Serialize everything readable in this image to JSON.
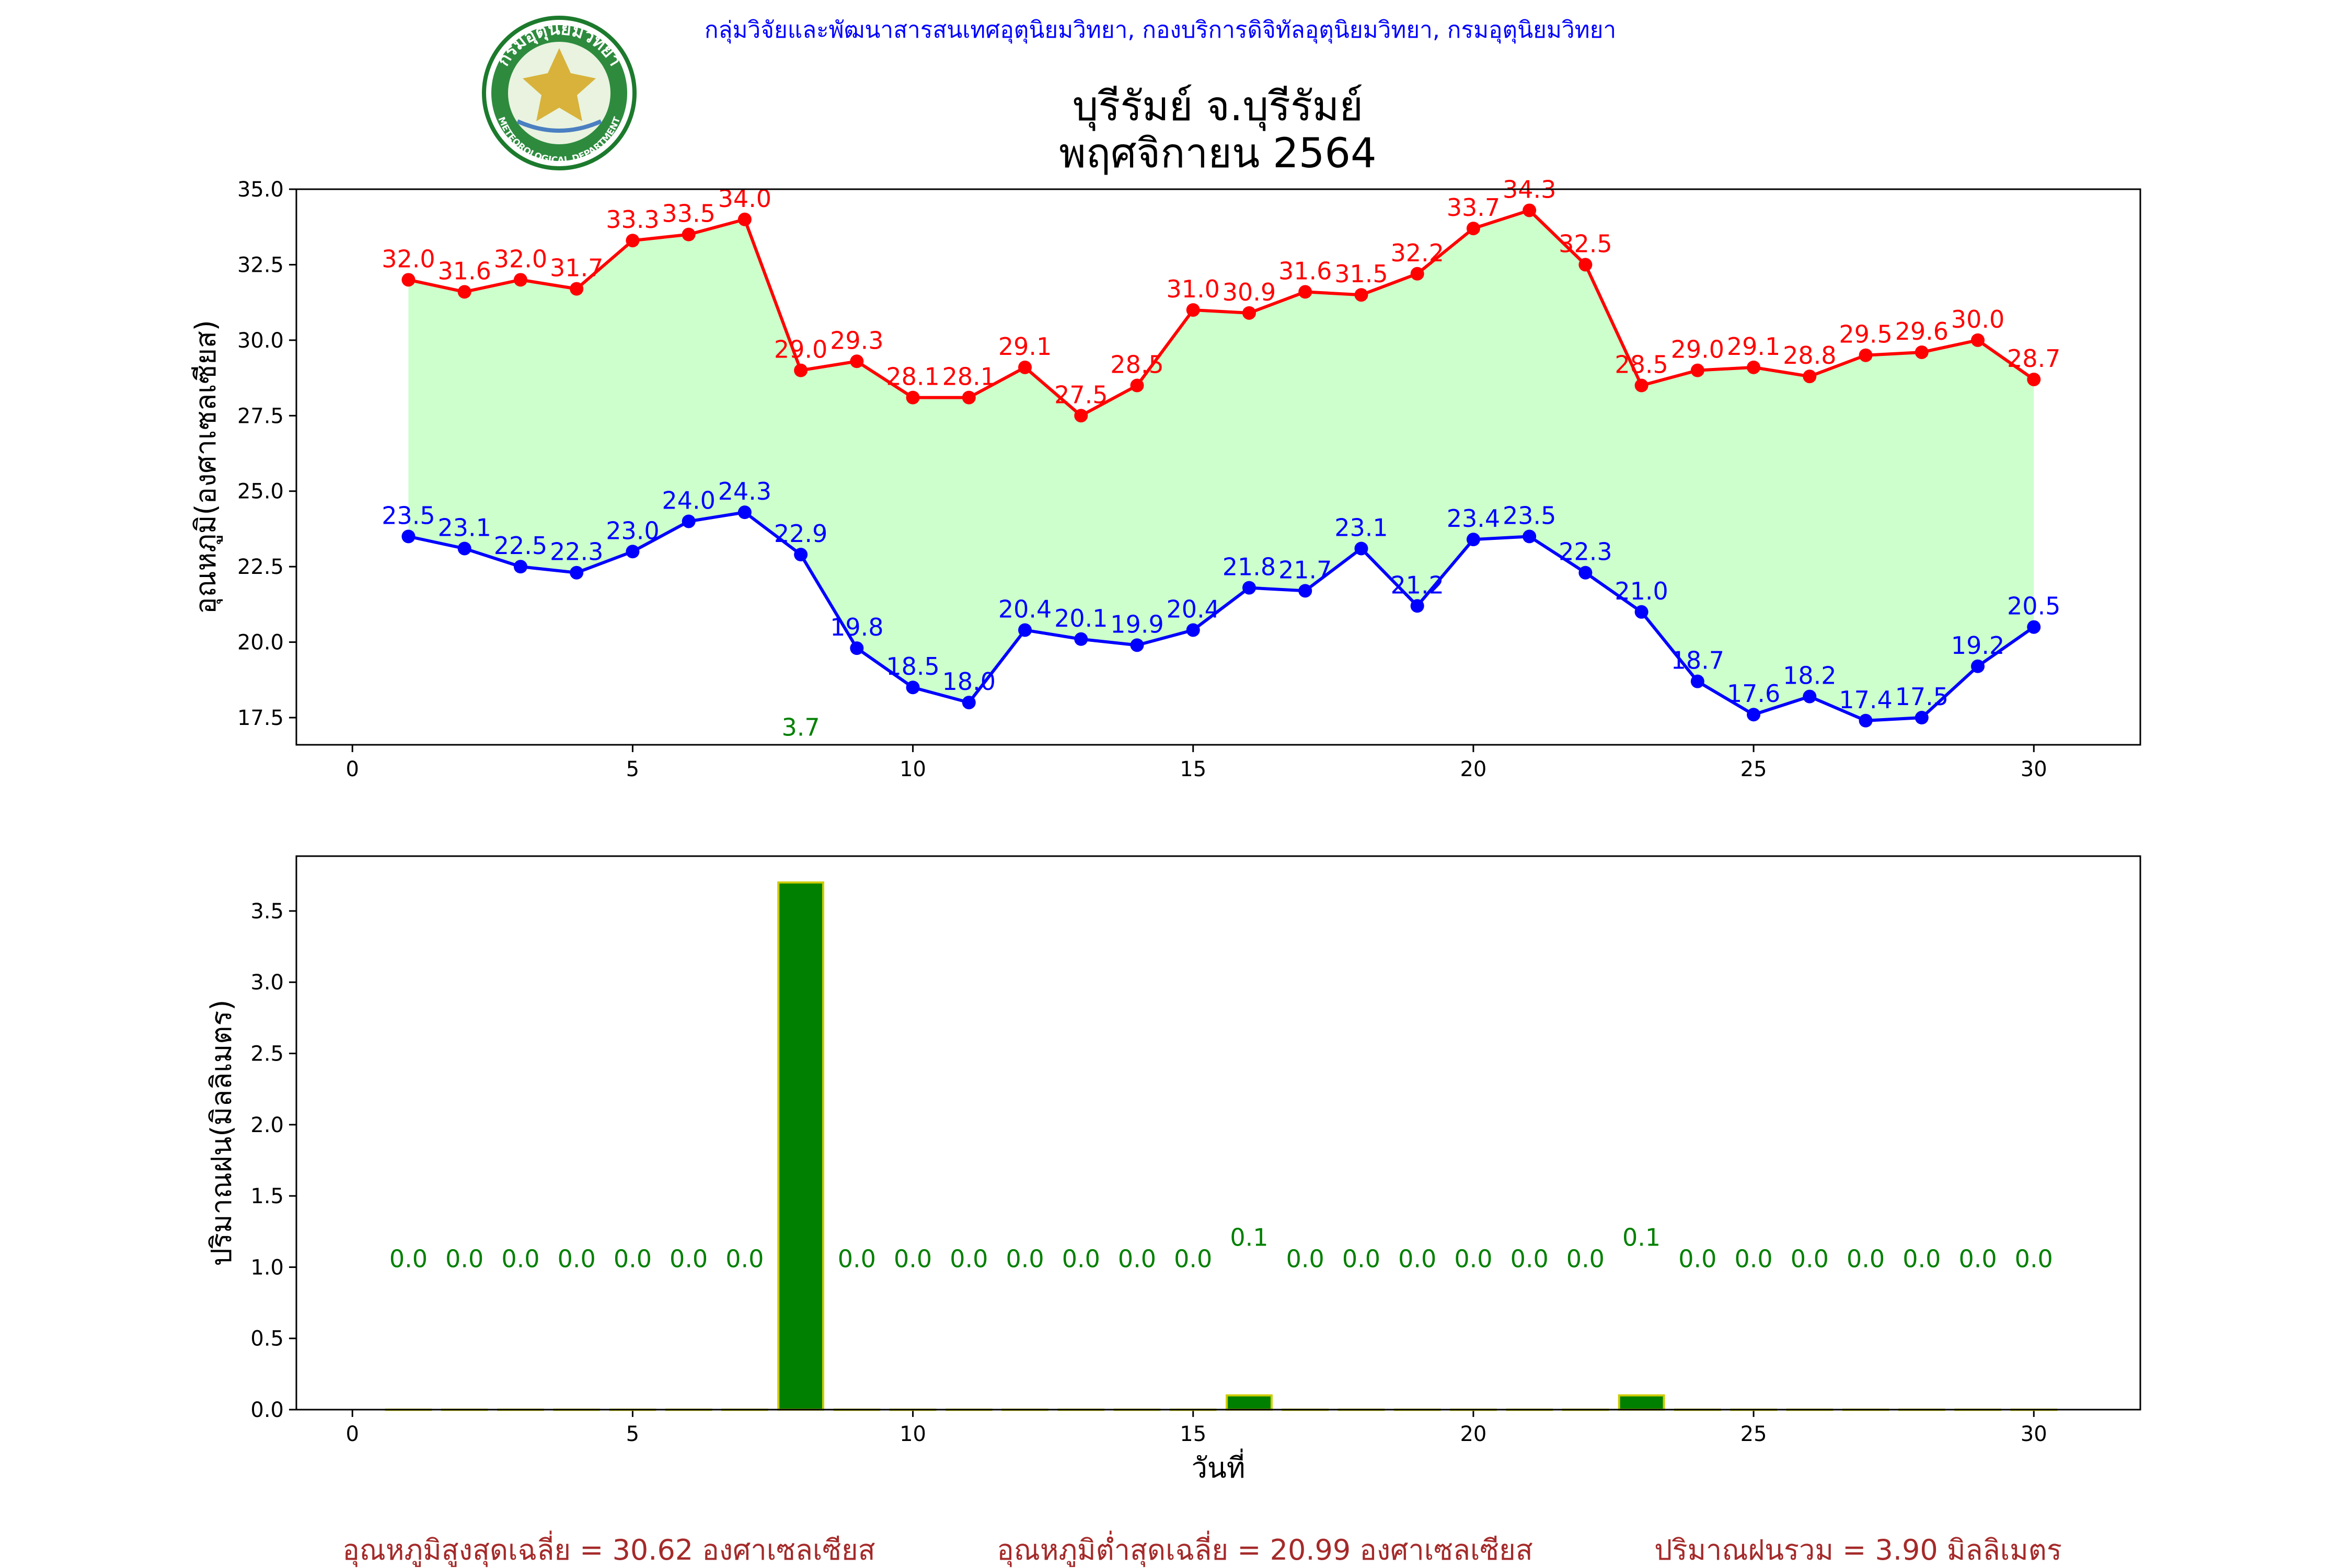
{
  "header": {
    "agency_line": "กลุ่มวิจัยและพัฒนาสารสนเทศอุตุนิยมวิทยา, กองบริการดิจิทัลอุตุนิยมวิทยา, กรมอุตุนิยมวิทยา",
    "logo_text_top": "กรมอุตุนิยมวิทยา",
    "logo_text_bottom": "METEOROLOGICAL DEPARTMENT",
    "title_line1": "บุรีรัมย์ จ.บุรีรัมย์",
    "title_line2": "พฤศจิกายน 2564"
  },
  "colors": {
    "max_line": "#ff0000",
    "min_line": "#0000ff",
    "fill": "#ccffcc",
    "rain_bar": "#008000",
    "rain_edge": "#cccc00",
    "rain_label": "#008000",
    "footer_text": "#a52a2a",
    "agency_text": "#0000ff"
  },
  "chart_data": [
    {
      "type": "line",
      "ylabel": "อุณหภูมิ(องศาเซลเซียส)",
      "xlim": [
        -1,
        31.9
      ],
      "ylim": [
        16.6,
        35.0
      ],
      "xticks": [
        0,
        5,
        10,
        15,
        20,
        25,
        30
      ],
      "yticks": [
        17.5,
        20.0,
        22.5,
        25.0,
        27.5,
        30.0,
        32.5,
        35.0
      ],
      "x": [
        1,
        2,
        3,
        4,
        5,
        6,
        7,
        8,
        9,
        10,
        11,
        12,
        13,
        14,
        15,
        16,
        17,
        18,
        19,
        20,
        21,
        22,
        23,
        24,
        25,
        26,
        27,
        28,
        29,
        30
      ],
      "series": [
        {
          "key": "max",
          "values": [
            32.0,
            31.6,
            32.0,
            31.7,
            33.3,
            33.5,
            34.0,
            29.0,
            29.3,
            28.1,
            28.1,
            29.1,
            27.5,
            28.5,
            31.0,
            30.9,
            31.6,
            31.5,
            32.2,
            33.7,
            34.3,
            32.5,
            28.5,
            29.0,
            29.1,
            28.8,
            29.5,
            29.6,
            30.0,
            28.7
          ]
        },
        {
          "key": "min",
          "values": [
            23.5,
            23.1,
            22.5,
            22.3,
            23.0,
            24.0,
            24.3,
            22.9,
            19.8,
            18.5,
            18.0,
            20.4,
            20.1,
            19.9,
            20.4,
            21.8,
            21.7,
            23.1,
            21.2,
            23.4,
            23.5,
            22.3,
            21.0,
            18.7,
            17.6,
            18.2,
            17.4,
            17.5,
            19.2,
            20.5
          ]
        }
      ],
      "annotation": {
        "text": "3.7",
        "x": 8,
        "y": 16.9
      }
    },
    {
      "type": "bar",
      "xlabel": "วันที่",
      "ylabel": "ปริมาณฝน(มิลลิเมตร)",
      "xlim": [
        -1,
        31.9
      ],
      "ylim": [
        0.0,
        3.885
      ],
      "xticks": [
        0,
        5,
        10,
        15,
        20,
        25,
        30
      ],
      "yticks": [
        0.0,
        0.5,
        1.0,
        1.5,
        2.0,
        2.5,
        3.0,
        3.5
      ],
      "x": [
        1,
        2,
        3,
        4,
        5,
        6,
        7,
        8,
        9,
        10,
        11,
        12,
        13,
        14,
        15,
        16,
        17,
        18,
        19,
        20,
        21,
        22,
        23,
        24,
        25,
        26,
        27,
        28,
        29,
        30
      ],
      "values": [
        0.0,
        0.0,
        0.0,
        0.0,
        0.0,
        0.0,
        0.0,
        3.7,
        0.0,
        0.0,
        0.0,
        0.0,
        0.0,
        0.0,
        0.0,
        0.1,
        0.0,
        0.0,
        0.0,
        0.0,
        0.0,
        0.0,
        0.1,
        0.0,
        0.0,
        0.0,
        0.0,
        0.0,
        0.0,
        0.0
      ],
      "value_labels": [
        "0.0",
        "0.0",
        "0.0",
        "0.0",
        "0.0",
        "0.0",
        "0.0",
        "",
        "0.0",
        "0.0",
        "0.0",
        "0.0",
        "0.0",
        "0.0",
        "0.0",
        "0.1",
        "0.0",
        "0.0",
        "0.0",
        "0.0",
        "0.0",
        "0.0",
        "0.1",
        "0.0",
        "0.0",
        "0.0",
        "0.0",
        "0.0",
        "0.0",
        "0.0"
      ],
      "label_y": 1.0,
      "label_y_raised": 1.15
    }
  ],
  "footer": {
    "avg_max": "อุณหภูมิสูงสุดเฉลี่ย = 30.62 องศาเซลเซียส",
    "avg_min": "อุณหภูมิต่ำสุดเฉลี่ย = 20.99 องศาเซลเซียส",
    "total_rain": "ปริมาณฝนรวม = 3.90 มิลลิเมตร"
  }
}
